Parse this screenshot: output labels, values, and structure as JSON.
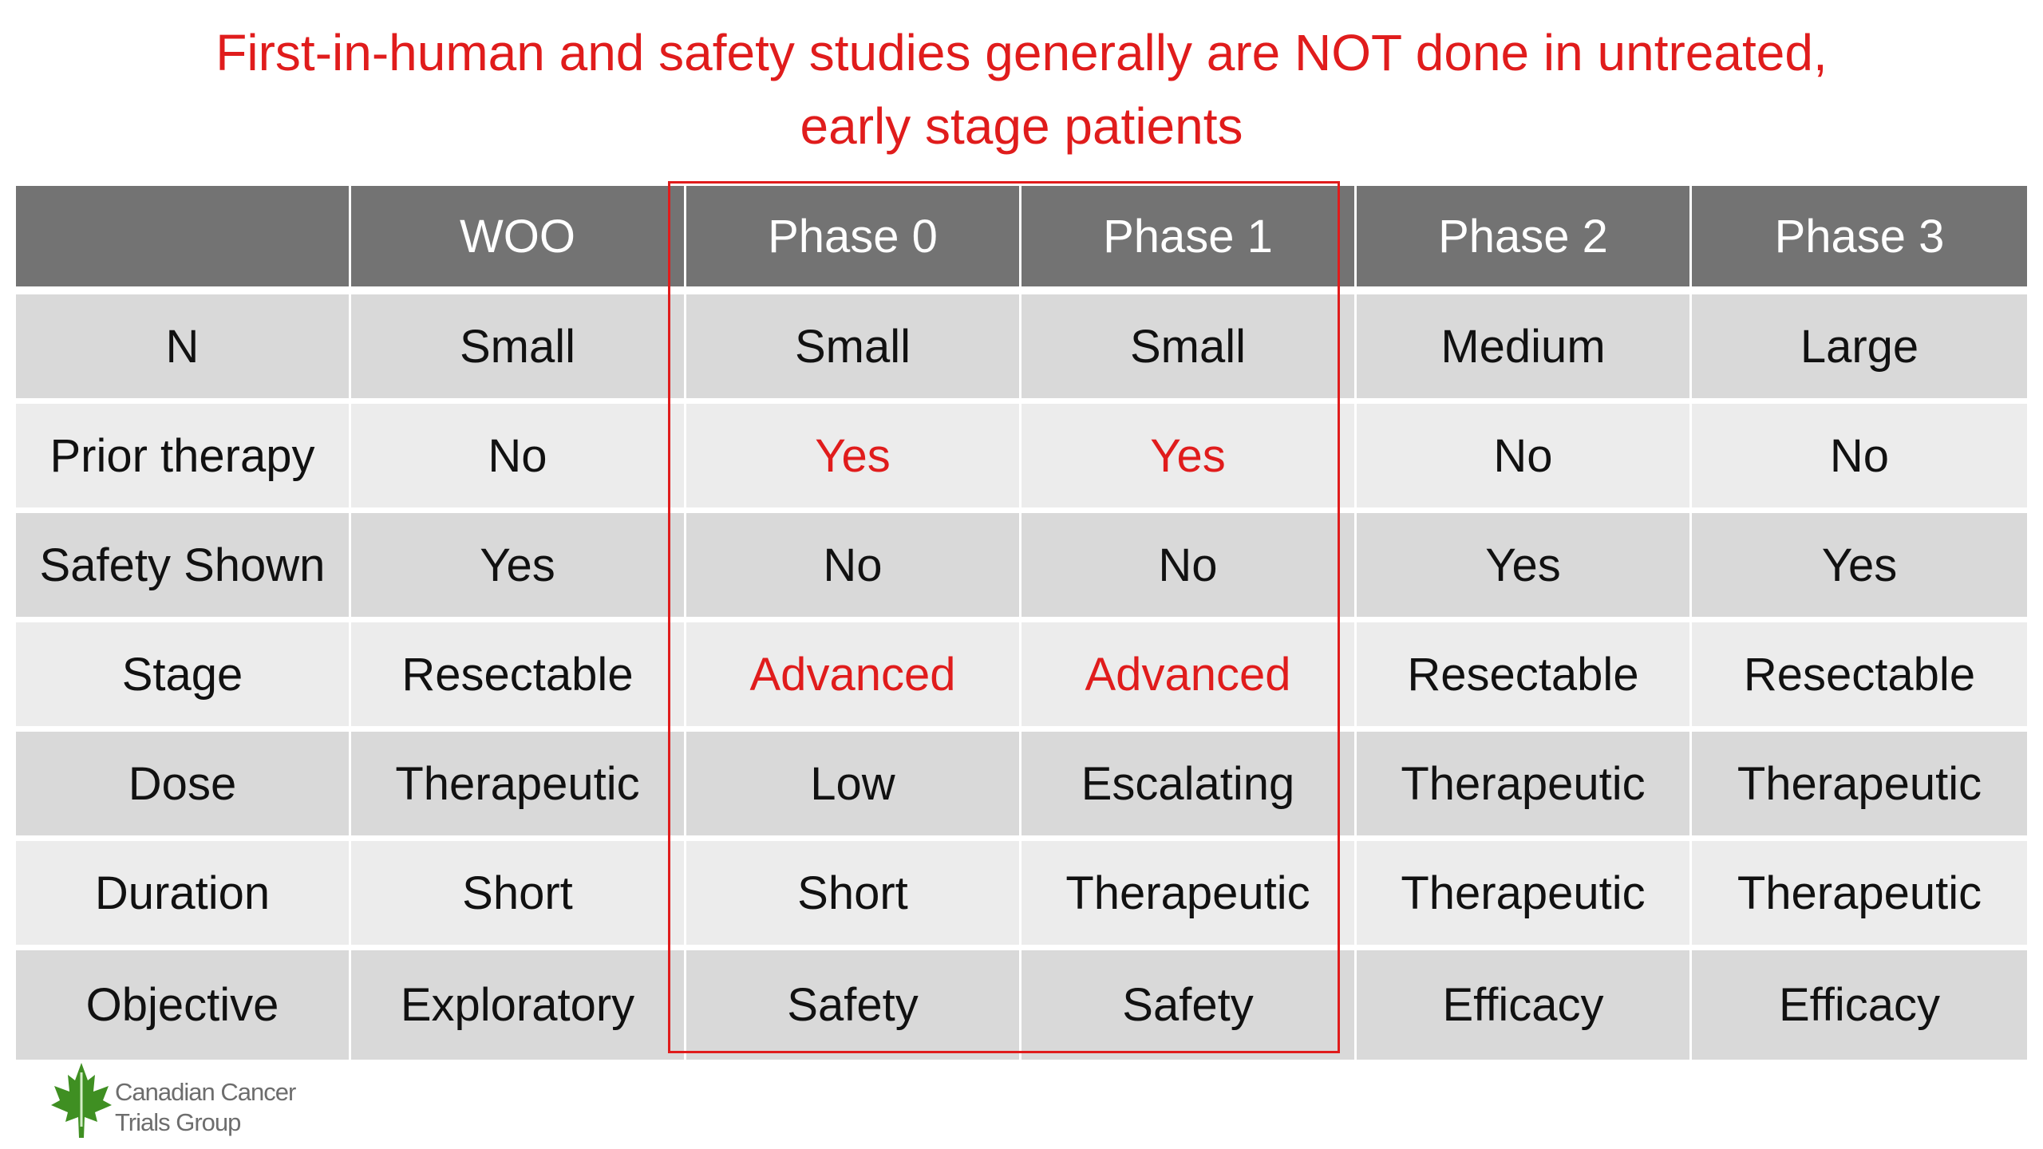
{
  "title": {
    "line_1": "First-in-human and safety studies generally are NOT done in untreated,",
    "line_2": "early stage patients"
  },
  "table": {
    "headers": [
      "",
      "WOO",
      "Phase 0",
      "Phase 1",
      "Phase 2",
      "Phase 3"
    ],
    "rows": [
      [
        "N",
        "Small",
        "Small",
        "Small",
        "Medium",
        "Large"
      ],
      [
        "Prior therapy",
        "No",
        "Yes",
        "Yes",
        "No",
        "No"
      ],
      [
        "Safety Shown",
        "Yes",
        "No",
        "No",
        "Yes",
        "Yes"
      ],
      [
        "Stage",
        "Resectable",
        "Advanced",
        "Advanced",
        "Resectable",
        "Resectable"
      ],
      [
        "Dose",
        "Therapeutic",
        "Low",
        "Escalating",
        "Therapeutic",
        "Therapeutic"
      ],
      [
        "Duration",
        "Short",
        "Short",
        "Therapeutic",
        "Therapeutic",
        "Therapeutic"
      ],
      [
        "Objective",
        "Exploratory",
        "Safety",
        "Safety",
        "Efficacy",
        "Efficacy"
      ]
    ]
  },
  "logo": {
    "line_1": "Canadian Cancer",
    "line_2": "Trials Group",
    "icon": "maple-leaf-icon"
  },
  "colors": {
    "accent_red": "#e01c1c",
    "header_gray": "#737373",
    "row_dark": "#d9d9d9",
    "row_light": "#ececec",
    "logo_green": "#3f8f22"
  }
}
